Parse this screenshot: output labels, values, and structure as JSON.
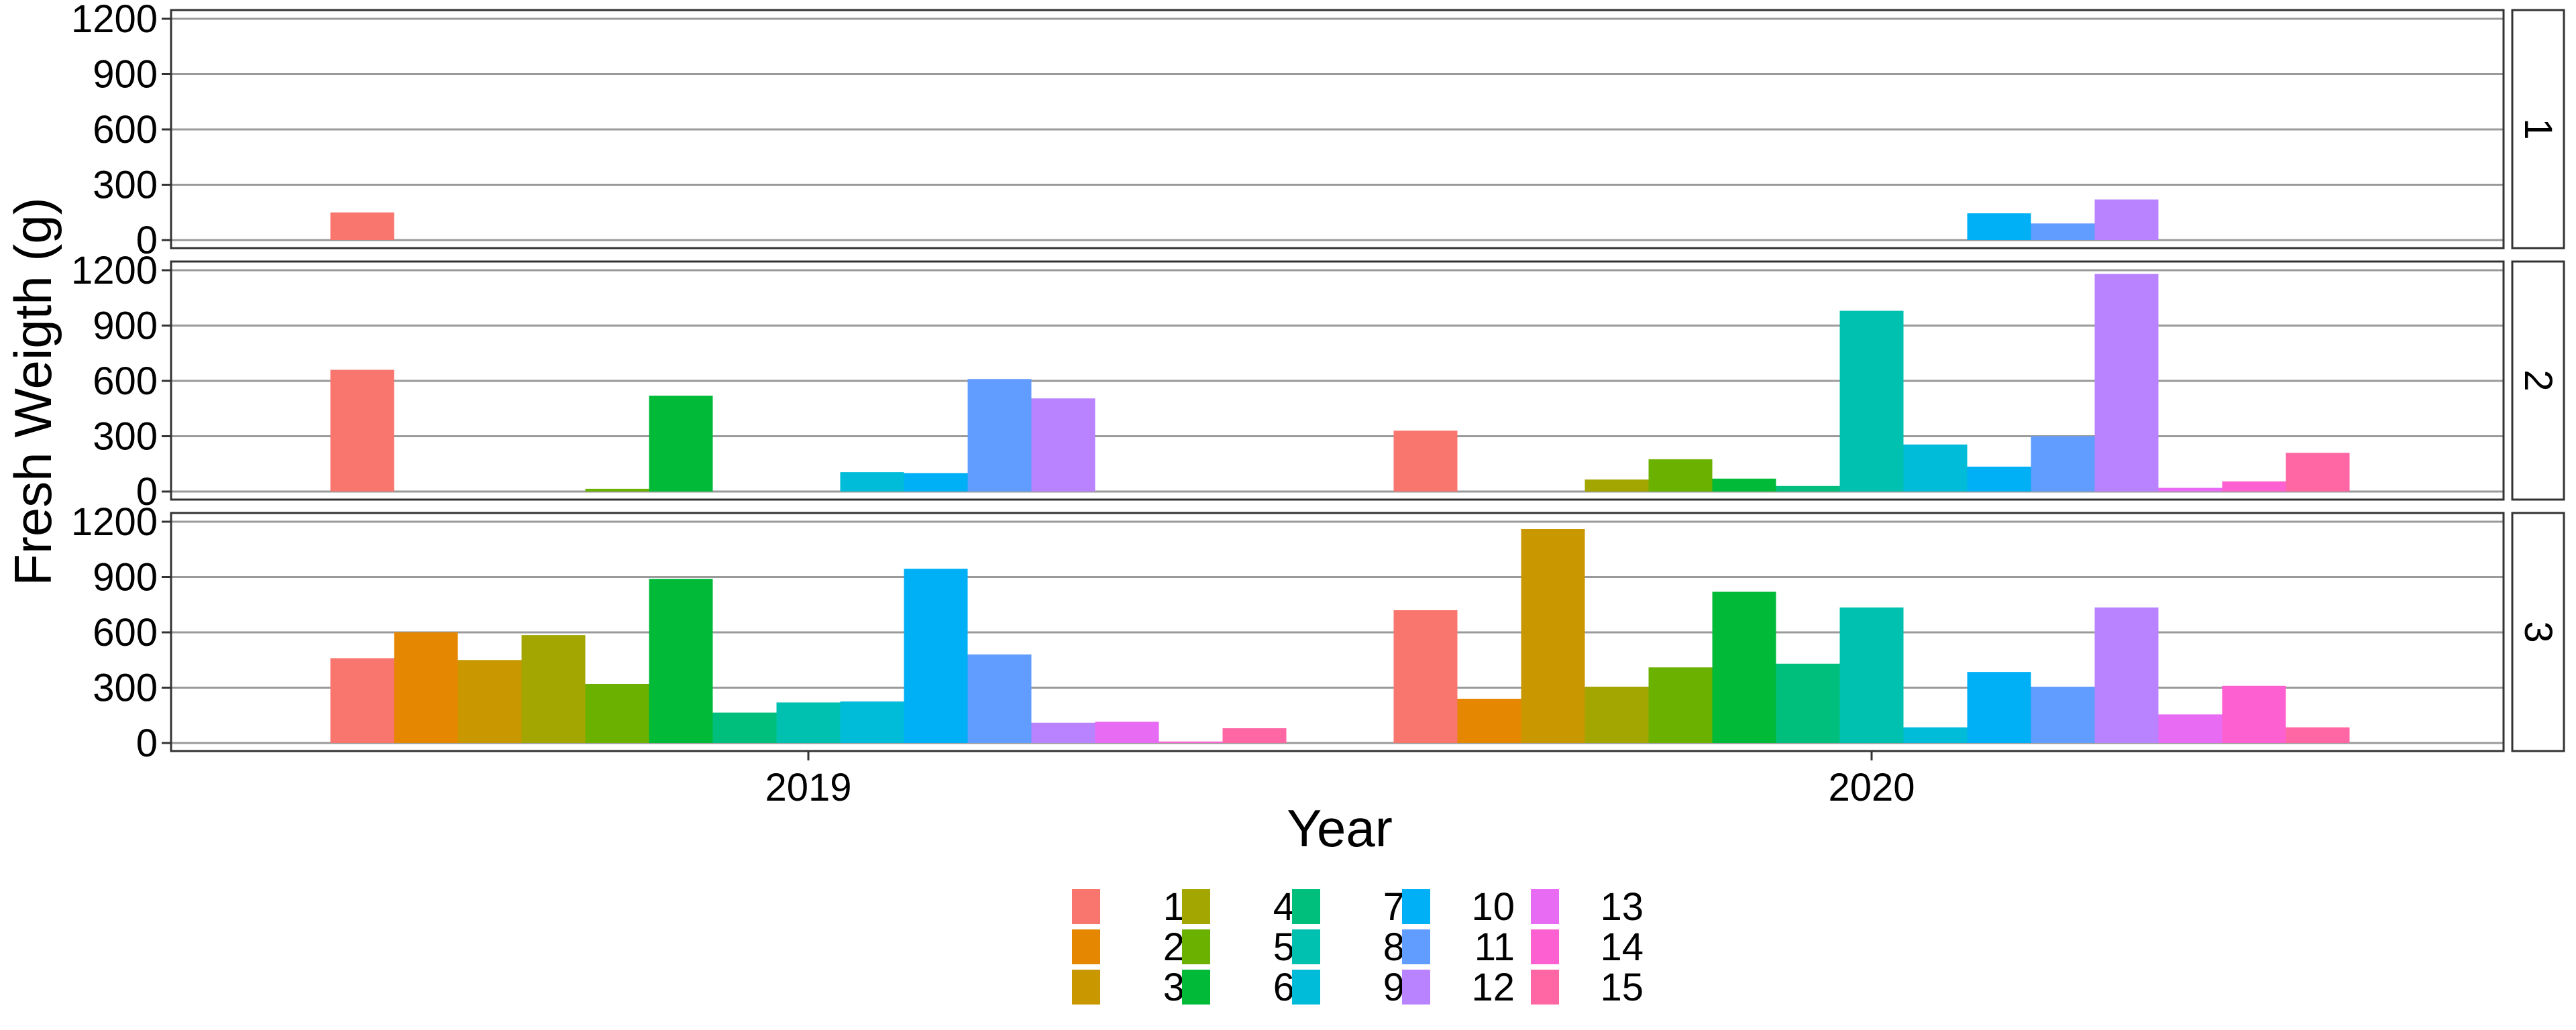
{
  "chart_data": {
    "type": "bar",
    "xlabel": "Year",
    "ylabel": "Fresh Weigth (g)",
    "categories": [
      "2019",
      "2020"
    ],
    "yticks": [
      0,
      300,
      600,
      900,
      1200
    ],
    "ylim": [
      0,
      1200
    ],
    "grid": true,
    "legend_position": "bottom",
    "legend": {
      "entries": [
        "1",
        "2",
        "3",
        "4",
        "5",
        "6",
        "7",
        "8",
        "9",
        "10",
        "11",
        "12",
        "13",
        "14",
        "15"
      ],
      "colors": [
        "#F8766D",
        "#E58700",
        "#C99800",
        "#A3A500",
        "#6BB100",
        "#00BA38",
        "#00BF7D",
        "#00C0AF",
        "#00BCD8",
        "#00B0F6",
        "#619CFF",
        "#B983FF",
        "#E76BF3",
        "#FD61D1",
        "#FF67A4"
      ]
    },
    "facets": [
      {
        "label": "1",
        "series": [
          {
            "name": "1",
            "values": [
              150,
              null
            ]
          },
          {
            "name": "2",
            "values": [
              null,
              null
            ]
          },
          {
            "name": "3",
            "values": [
              null,
              null
            ]
          },
          {
            "name": "4",
            "values": [
              null,
              null
            ]
          },
          {
            "name": "5",
            "values": [
              null,
              null
            ]
          },
          {
            "name": "6",
            "values": [
              null,
              null
            ]
          },
          {
            "name": "7",
            "values": [
              null,
              null
            ]
          },
          {
            "name": "8",
            "values": [
              null,
              null
            ]
          },
          {
            "name": "9",
            "values": [
              null,
              null
            ]
          },
          {
            "name": "10",
            "values": [
              null,
              145
            ]
          },
          {
            "name": "11",
            "values": [
              null,
              90
            ]
          },
          {
            "name": "12",
            "values": [
              null,
              220
            ]
          },
          {
            "name": "13",
            "values": [
              null,
              null
            ]
          },
          {
            "name": "14",
            "values": [
              null,
              null
            ]
          },
          {
            "name": "15",
            "values": [
              null,
              null
            ]
          }
        ]
      },
      {
        "label": "2",
        "series": [
          {
            "name": "1",
            "values": [
              660,
              330
            ]
          },
          {
            "name": "2",
            "values": [
              null,
              null
            ]
          },
          {
            "name": "3",
            "values": [
              null,
              null
            ]
          },
          {
            "name": "4",
            "values": [
              null,
              65
            ]
          },
          {
            "name": "5",
            "values": [
              15,
              175
            ]
          },
          {
            "name": "6",
            "values": [
              520,
              70
            ]
          },
          {
            "name": "7",
            "values": [
              null,
              30
            ]
          },
          {
            "name": "8",
            "values": [
              null,
              980
            ]
          },
          {
            "name": "9",
            "values": [
              105,
              255
            ]
          },
          {
            "name": "10",
            "values": [
              100,
              135
            ]
          },
          {
            "name": "11",
            "values": [
              610,
              300
            ]
          },
          {
            "name": "12",
            "values": [
              505,
              1180
            ]
          },
          {
            "name": "13",
            "values": [
              null,
              20
            ]
          },
          {
            "name": "14",
            "values": [
              null,
              55
            ]
          },
          {
            "name": "15",
            "values": [
              null,
              210
            ]
          }
        ]
      },
      {
        "label": "3",
        "series": [
          {
            "name": "1",
            "values": [
              460,
              720
            ]
          },
          {
            "name": "2",
            "values": [
              600,
              240
            ]
          },
          {
            "name": "3",
            "values": [
              450,
              1160
            ]
          },
          {
            "name": "4",
            "values": [
              585,
              305
            ]
          },
          {
            "name": "5",
            "values": [
              320,
              410
            ]
          },
          {
            "name": "6",
            "values": [
              890,
              820
            ]
          },
          {
            "name": "7",
            "values": [
              165,
              430
            ]
          },
          {
            "name": "8",
            "values": [
              220,
              735
            ]
          },
          {
            "name": "9",
            "values": [
              225,
              85
            ]
          },
          {
            "name": "10",
            "values": [
              945,
              385
            ]
          },
          {
            "name": "11",
            "values": [
              480,
              305
            ]
          },
          {
            "name": "12",
            "values": [
              110,
              735
            ]
          },
          {
            "name": "13",
            "values": [
              115,
              155
            ]
          },
          {
            "name": "14",
            "values": [
              8,
              310
            ]
          },
          {
            "name": "15",
            "values": [
              80,
              85
            ]
          }
        ]
      }
    ]
  }
}
